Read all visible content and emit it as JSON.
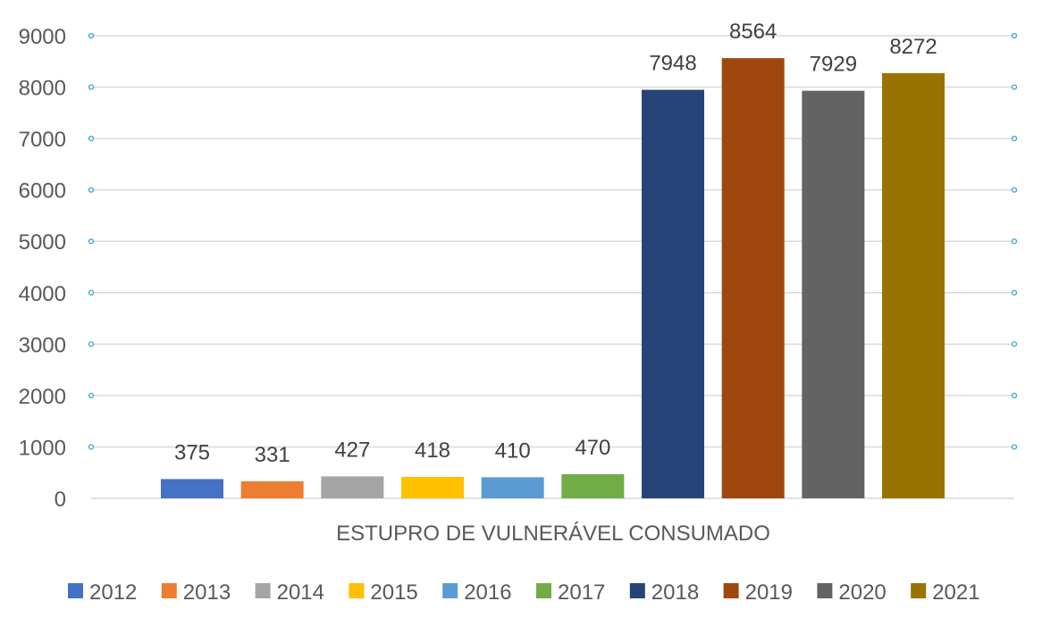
{
  "chart_data": {
    "type": "bar",
    "categories": [
      "ESTUPRO DE VULNERÁVEL CONSUMADO"
    ],
    "ylim": [
      0,
      9000
    ],
    "yticks": [
      0,
      1000,
      2000,
      3000,
      4000,
      5000,
      6000,
      7000,
      8000,
      9000
    ],
    "grid": true,
    "legend_position": "bottom",
    "series": [
      {
        "name": "2012",
        "values": [
          375
        ],
        "label": "375",
        "color": "#4472C4"
      },
      {
        "name": "2013",
        "values": [
          331
        ],
        "label": "331",
        "color": "#ED7D31"
      },
      {
        "name": "2014",
        "values": [
          427
        ],
        "label": "427",
        "color": "#A5A5A5"
      },
      {
        "name": "2015",
        "values": [
          418
        ],
        "label": "418",
        "color": "#FFC000"
      },
      {
        "name": "2016",
        "values": [
          410
        ],
        "label": "410",
        "color": "#5B9BD5"
      },
      {
        "name": "2017",
        "values": [
          470
        ],
        "label": "470",
        "color": "#70AD47"
      },
      {
        "name": "2018",
        "values": [
          7948
        ],
        "label": "7948",
        "color": "#264478"
      },
      {
        "name": "2019",
        "values": [
          8564
        ],
        "label": "8564",
        "color": "#9E480E"
      },
      {
        "name": "2020",
        "values": [
          7929
        ],
        "label": "7929",
        "color": "#636363"
      },
      {
        "name": "2021",
        "values": [
          8272
        ],
        "label": "8272",
        "color": "#997300"
      }
    ]
  }
}
